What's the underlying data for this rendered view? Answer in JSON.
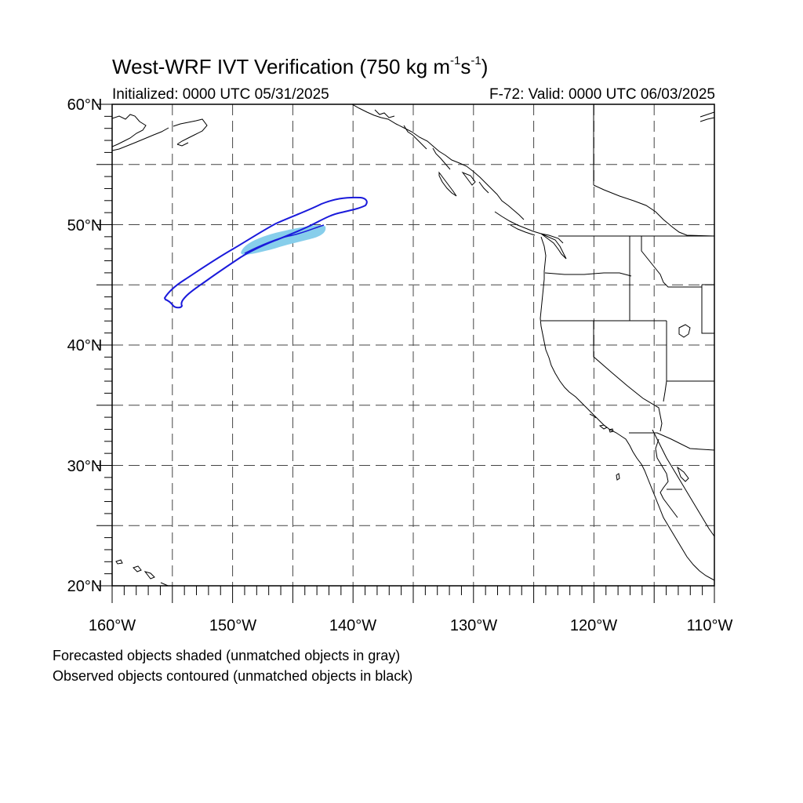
{
  "title": {
    "main": "West-WRF IVT Verification (750 kg m",
    "sup1": "-1",
    "mid": "s",
    "sup2": "-1",
    "end": ")"
  },
  "initialized": "Initialized: 0000 UTC 05/31/2025",
  "valid": "F-72: Valid: 0000 UTC 06/03/2025",
  "map": {
    "lon_range": [
      -160,
      -110
    ],
    "lat_range": [
      20,
      60
    ],
    "grid": "dashed every 5 degrees",
    "lat_labels": [
      "60°N",
      "50°N",
      "40°N",
      "30°N",
      "20°N"
    ],
    "lon_labels": [
      "160°W",
      "150°W",
      "140°W",
      "130°W",
      "120°W",
      "110°W"
    ],
    "colors": {
      "forecast_fill": "#87ceeb",
      "observed_contour": "#1a1adb",
      "coastline": "#000000"
    },
    "objects": [
      {
        "type": "forecast",
        "matched": true,
        "center": {
          "lon": -145.5,
          "lat": 49.0
        }
      },
      {
        "type": "observed",
        "matched": true,
        "center": {
          "lon": -147.0,
          "lat": 48.0
        }
      }
    ]
  },
  "notes": [
    "Forecasted objects shaded (unmatched objects in gray)",
    "Observed objects contoured (unmatched objects in black)"
  ]
}
